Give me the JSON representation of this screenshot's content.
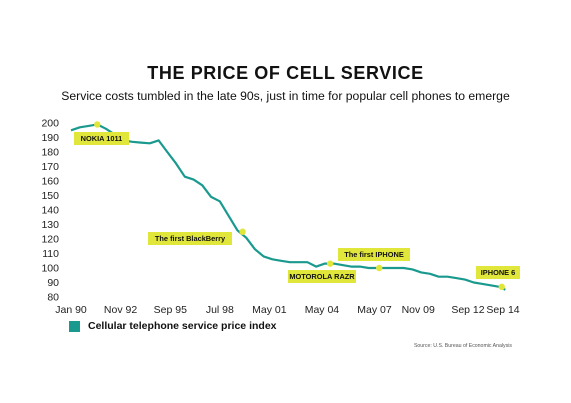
{
  "chart_data": {
    "type": "line",
    "title": "THE PRICE OF CELL SERVICE",
    "subtitle": "Service costs tumbled in the late 90s, just in time for popular cell phones to emerge",
    "xlabel": "",
    "ylabel": "",
    "ylim": [
      80,
      200
    ],
    "yticks": [
      80,
      90,
      100,
      110,
      120,
      130,
      140,
      150,
      160,
      170,
      180,
      190,
      200
    ],
    "xtick_labels": [
      "Jan 90",
      "Nov 92",
      "Sep 95",
      "Jul 98",
      "May 01",
      "May 04",
      "May 07",
      "Nov 09",
      "Sep 12",
      "Sep 14"
    ],
    "xtick_positions": [
      1990.0,
      1992.83,
      1995.67,
      1998.5,
      2001.33,
      2004.33,
      2007.33,
      2009.83,
      2012.67,
      2014.67
    ],
    "grid": false,
    "legend_position": "bottom-left",
    "series": [
      {
        "name": "Cellular telephone service price index",
        "color": "#1a9a8e",
        "x": [
          1990.0,
          1990.5,
          1991.0,
          1991.5,
          1992.0,
          1992.5,
          1993.0,
          1993.5,
          1994.0,
          1994.5,
          1995.0,
          1995.5,
          1996.0,
          1996.5,
          1997.0,
          1997.5,
          1998.0,
          1998.5,
          1999.0,
          1999.5,
          2000.0,
          2000.5,
          2001.0,
          2001.5,
          2002.0,
          2002.5,
          2003.0,
          2003.5,
          2004.0,
          2004.5,
          2005.0,
          2005.5,
          2006.0,
          2006.5,
          2007.0,
          2007.5,
          2008.0,
          2008.5,
          2009.0,
          2009.5,
          2010.0,
          2010.5,
          2011.0,
          2011.5,
          2012.0,
          2012.5,
          2013.0,
          2013.5,
          2014.0,
          2014.5,
          2014.8
        ],
        "values": [
          195,
          197,
          198,
          199,
          196,
          192,
          188,
          187,
          186.5,
          186,
          188,
          180,
          172,
          163,
          161,
          157,
          149,
          146,
          136,
          126,
          121,
          113,
          108,
          106,
          105,
          104,
          104,
          104,
          101,
          103,
          103,
          102,
          101,
          101,
          100,
          100,
          100,
          100,
          100,
          99,
          97,
          96,
          94,
          94,
          93,
          92,
          90,
          89,
          88,
          87,
          85
        ]
      }
    ],
    "annotations": [
      {
        "label": "NOKIA 1011",
        "x": 1991.5,
        "y": 199
      },
      {
        "label": "The first BlackBerry",
        "x": 1999.8,
        "y": 125
      },
      {
        "label": "MOTOROLA RAZR",
        "x": 2004.8,
        "y": 103
      },
      {
        "label": "The first IPHONE",
        "x": 2007.6,
        "y": 100
      },
      {
        "label": "IPHONE 6",
        "x": 2014.6,
        "y": 87
      }
    ],
    "annotation_color": "#e0e63a",
    "source": "Source: U.S. Bureau of Economic Analysis"
  }
}
